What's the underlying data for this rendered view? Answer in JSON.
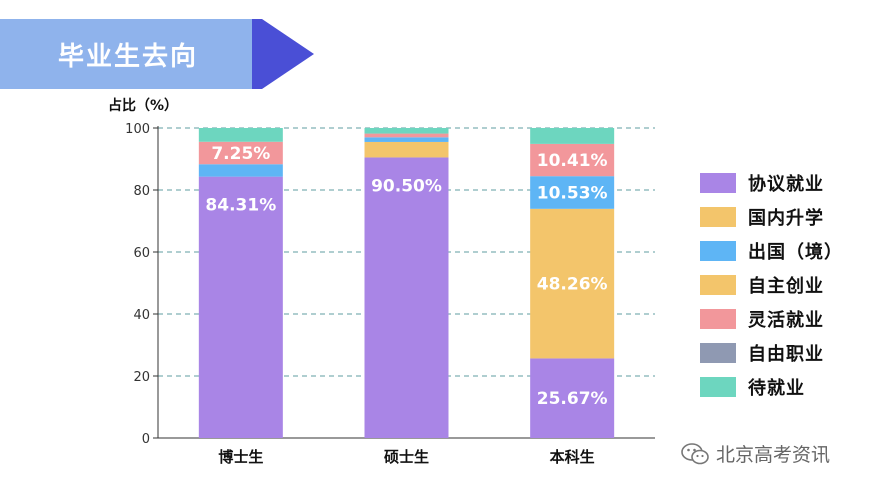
{
  "header": {
    "title": "毕业生去向"
  },
  "watermark": {
    "text": "北京高考资讯",
    "icon": "wechat-icon"
  },
  "chart_data": {
    "type": "bar",
    "stacked": true,
    "ylabel": "占比（%）",
    "ylim": [
      0,
      100
    ],
    "yticks": [
      0,
      20,
      40,
      60,
      80,
      100
    ],
    "grid": "horizontal-dashed",
    "legend_position": "right",
    "categories": [
      "博士生",
      "硕士生",
      "本科生"
    ],
    "series": [
      {
        "name": "协议就业",
        "color": "#a985e6",
        "values": [
          84.31,
          90.5,
          25.67
        ],
        "labels": [
          "84.31%",
          "90.50%",
          "25.67%"
        ]
      },
      {
        "name": "国内升学",
        "color": "#f3c56b",
        "values": [
          0.0,
          5.0,
          48.26
        ],
        "labels": [
          "",
          "",
          "48.26%"
        ]
      },
      {
        "name": "出国（境）",
        "color": "#5eb5f5",
        "values": [
          4.0,
          1.5,
          10.53
        ],
        "labels": [
          "",
          "",
          "10.53%"
        ]
      },
      {
        "name": "自主创业",
        "color": "#f3c56b",
        "values": [
          0.0,
          0.0,
          0.0
        ],
        "labels": [
          "",
          "",
          ""
        ]
      },
      {
        "name": "灵活就业",
        "color": "#f2979b",
        "values": [
          7.25,
          1.2,
          10.41
        ],
        "labels": [
          "7.25%",
          "",
          "10.41%"
        ]
      },
      {
        "name": "自由职业",
        "color": "#8f99b2",
        "values": [
          0.0,
          0.0,
          0.0
        ],
        "labels": [
          "",
          "",
          ""
        ]
      },
      {
        "name": "待就业",
        "color": "#6dd6bf",
        "values": [
          4.44,
          1.8,
          5.13
        ],
        "labels": [
          "",
          "",
          ""
        ]
      }
    ]
  }
}
